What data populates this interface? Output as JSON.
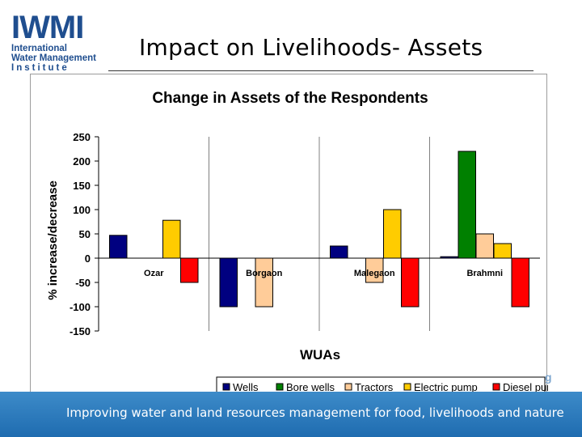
{
  "logo": {
    "word": "IWMI",
    "line1": "International",
    "line2": "Water Management",
    "line3": "Institute",
    "color": "#1f4e8f"
  },
  "slide_title": "Impact on Livelihoods- Assets",
  "stray_fragment": "g",
  "footer": {
    "text": "Improving water and land resources management for food, livelihoods and nature"
  },
  "chart_data": {
    "type": "bar",
    "title": "Change in Assets of the Respondents",
    "xlabel": "WUAs",
    "ylabel": "% increase/decrease",
    "ylim": [
      -150,
      250
    ],
    "yticks": [
      250,
      200,
      150,
      100,
      50,
      0,
      -50,
      -100,
      -150
    ],
    "categories": [
      "Ozar",
      "Borgaon",
      "Malegaon",
      "Brahmni"
    ],
    "series": [
      {
        "name": "Wells",
        "color": "#000080",
        "values": [
          47,
          -100,
          25,
          3
        ]
      },
      {
        "name": "Bore wells",
        "color": "#008000",
        "values": [
          0,
          0,
          0,
          220
        ]
      },
      {
        "name": "Tractors",
        "color": "#ffcc99",
        "values": [
          0,
          -100,
          -50,
          50
        ]
      },
      {
        "name": "Electric pump",
        "color": "#ffcc00",
        "values": [
          78,
          0,
          100,
          30
        ]
      },
      {
        "name": "Diesel pump",
        "color": "#ff0000",
        "values": [
          -50,
          0,
          -100,
          -100
        ]
      }
    ],
    "legend_position": "bottom"
  }
}
